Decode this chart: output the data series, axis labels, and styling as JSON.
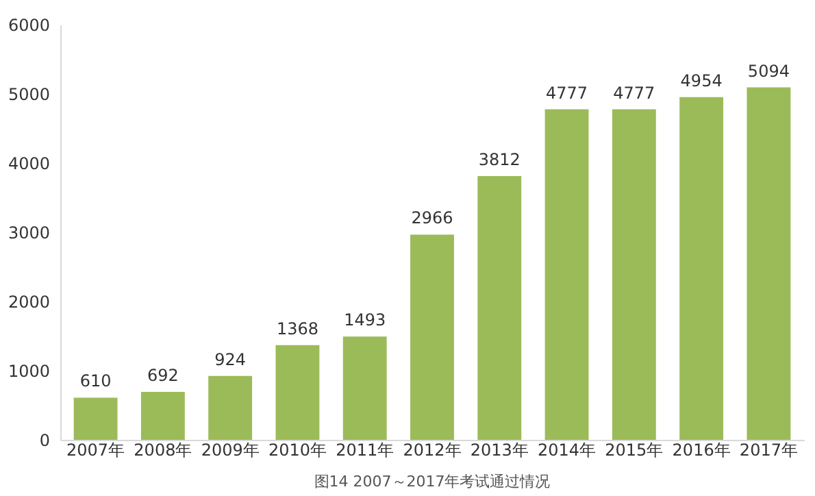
{
  "chart_data": {
    "type": "bar",
    "categories": [
      "2007年",
      "2008年",
      "2009年",
      "2010年",
      "2011年",
      "2012年",
      "2013年",
      "2014年",
      "2015年",
      "2016年",
      "2017年"
    ],
    "values": [
      610,
      692,
      924,
      1368,
      1493,
      2966,
      3812,
      4777,
      4777,
      4954,
      5094
    ],
    "color": "#9bbb59",
    "ylim": [
      0,
      6000
    ],
    "yticks": [
      0,
      1000,
      2000,
      3000,
      4000,
      5000,
      6000
    ],
    "grid": false,
    "data_labels": true,
    "annotations": [
      "图14 2007～2017年考试通过情况"
    ]
  }
}
